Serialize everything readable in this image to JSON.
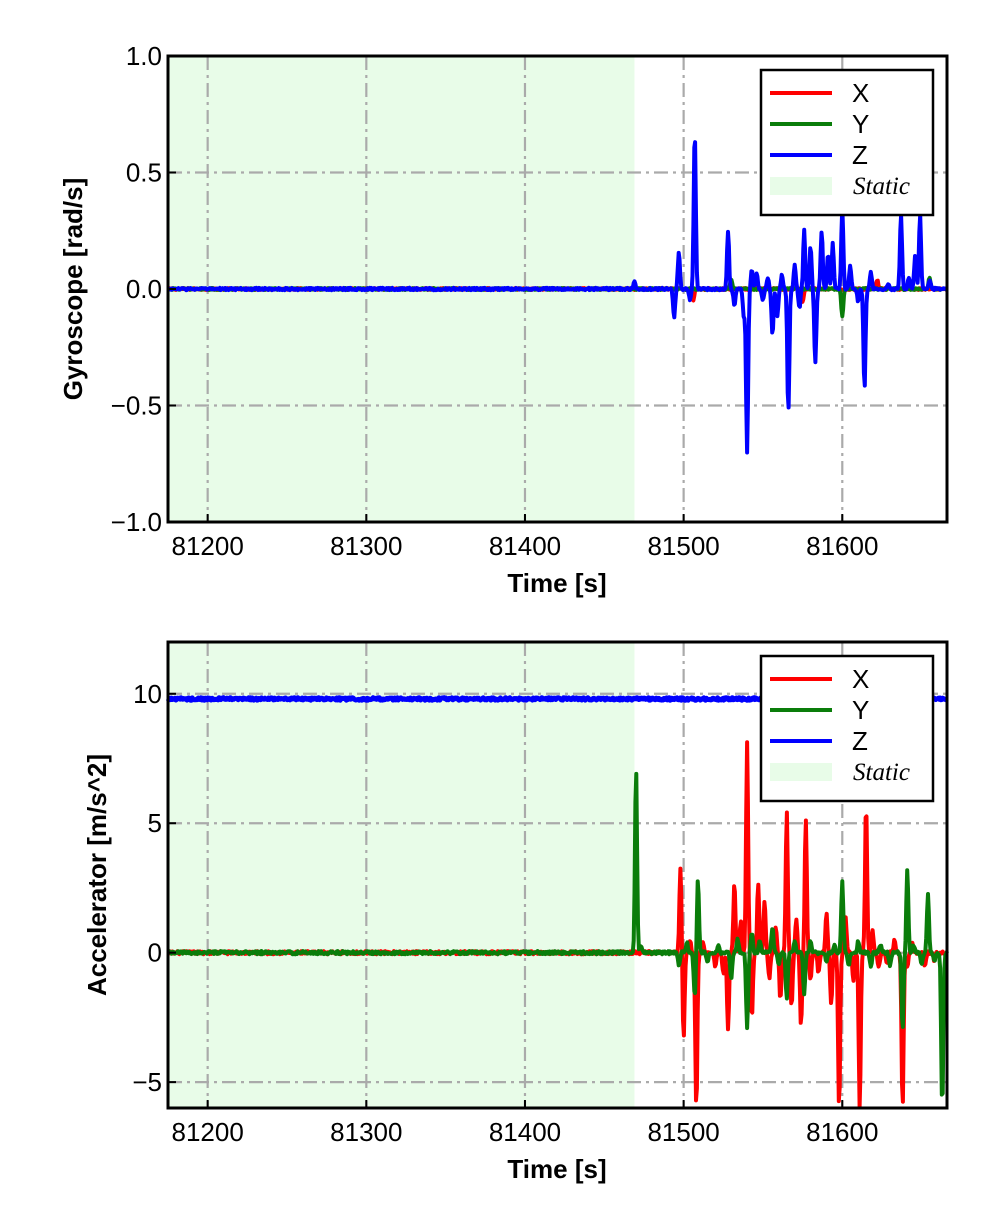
{
  "colors": {
    "X": "#ff0000",
    "Y": "#0a7d0a",
    "Z": "#0000ff",
    "static_fill": "#e8fce8",
    "grid": "#aaaaaa"
  },
  "chart_data": [
    {
      "type": "line",
      "xlabel": "Time [s]",
      "ylabel": "Gyroscope [rad/s]",
      "xlim": [
        81175,
        81666
      ],
      "ylim": [
        -1.0,
        1.0
      ],
      "xticks": [
        81200,
        81300,
        81400,
        81500,
        81600
      ],
      "xtick_labels": [
        "81200",
        "81300",
        "81400",
        "81500",
        "81600"
      ],
      "yticks": [
        -1.0,
        -0.5,
        0.0,
        0.5,
        1.0
      ],
      "ytick_labels": [
        "−1.0",
        "−0.5",
        "0.0",
        "0.5",
        "1.0"
      ],
      "grid": true,
      "legend_position": "top-right",
      "static_region": {
        "label": "Static",
        "x": [
          81175,
          81469
        ]
      },
      "series": [
        {
          "name": "X",
          "color": "#ff0000",
          "baseline": 0.0,
          "noise": 0.004,
          "events": [
            [
              81506,
              -0.05
            ],
            [
              81545,
              0.05
            ],
            [
              81575,
              -0.06
            ],
            [
              81622,
              0.04
            ]
          ]
        },
        {
          "name": "Y",
          "color": "#0a7d0a",
          "baseline": 0.0,
          "noise": 0.004,
          "events": [
            [
              81600,
              -0.12
            ],
            [
              81655,
              0.05
            ],
            [
              81530,
              0.04
            ]
          ]
        },
        {
          "name": "Z",
          "color": "#0000ff",
          "baseline": 0.0,
          "noise": 0.005,
          "events": [
            [
              81469,
              0.03
            ],
            [
              81494,
              -0.12
            ],
            [
              81497,
              0.16
            ],
            [
              81504,
              -0.05
            ],
            [
              81507,
              0.68
            ],
            [
              81528,
              0.25
            ],
            [
              81532,
              -0.07
            ],
            [
              81538,
              -0.12
            ],
            [
              81540,
              -0.7
            ],
            [
              81543,
              0.08
            ],
            [
              81546,
              0.07
            ],
            [
              81550,
              -0.05
            ],
            [
              81553,
              0.05
            ],
            [
              81556,
              -0.2
            ],
            [
              81559,
              -0.12
            ],
            [
              81562,
              0.06
            ],
            [
              81566,
              -0.53
            ],
            [
              81570,
              0.1
            ],
            [
              81573,
              -0.08
            ],
            [
              81576,
              0.25
            ],
            [
              81580,
              0.18
            ],
            [
              81583,
              -0.32
            ],
            [
              81587,
              0.25
            ],
            [
              81591,
              0.15
            ],
            [
              81594,
              0.2
            ],
            [
              81600,
              0.35
            ],
            [
              81605,
              0.1
            ],
            [
              81610,
              -0.05
            ],
            [
              81614,
              -0.43
            ],
            [
              81618,
              0.07
            ],
            [
              81629,
              0.02
            ],
            [
              81637,
              0.32
            ],
            [
              81642,
              0.05
            ],
            [
              81646,
              0.15
            ],
            [
              81649,
              0.32
            ],
            [
              81655,
              0.04
            ]
          ]
        }
      ]
    },
    {
      "type": "line",
      "xlabel": "Time [s]",
      "ylabel": "Accelerator [m/s^2]",
      "xlim": [
        81175,
        81666
      ],
      "ylim": [
        -6.0,
        12.0
      ],
      "xticks": [
        81200,
        81300,
        81400,
        81500,
        81600
      ],
      "xtick_labels": [
        "81200",
        "81300",
        "81400",
        "81500",
        "81600"
      ],
      "yticks": [
        -5,
        0,
        5,
        10
      ],
      "ytick_labels": [
        "−5",
        "0",
        "5",
        "10"
      ],
      "grid": true,
      "legend_position": "top-right",
      "static_region": {
        "label": "Static",
        "x": [
          81175,
          81469
        ]
      },
      "series": [
        {
          "name": "X",
          "color": "#ff0000",
          "baseline": 0.0,
          "noise": 0.06,
          "events": [
            [
              81498,
              3.3
            ],
            [
              81500,
              -3.3
            ],
            [
              81504,
              0.5
            ],
            [
              81508,
              -6.0
            ],
            [
              81512,
              0.4
            ],
            [
              81520,
              -0.5
            ],
            [
              81525,
              -0.8
            ],
            [
              81528,
              -3.0
            ],
            [
              81532,
              2.7
            ],
            [
              81536,
              1.2
            ],
            [
              81540,
              8.1
            ],
            [
              81543,
              -2.5
            ],
            [
              81547,
              2.7
            ],
            [
              81551,
              2.0
            ],
            [
              81554,
              -1.0
            ],
            [
              81558,
              1.0
            ],
            [
              81561,
              -1.8
            ],
            [
              81565,
              5.4
            ],
            [
              81568,
              -2.1
            ],
            [
              81571,
              1.3
            ],
            [
              81574,
              -2.8
            ],
            [
              81577,
              5.2
            ],
            [
              81580,
              -1.0
            ],
            [
              81585,
              -0.8
            ],
            [
              81590,
              1.5
            ],
            [
              81593,
              -2.0
            ],
            [
              81598,
              -6.0
            ],
            [
              81602,
              1.4
            ],
            [
              81607,
              -1.1
            ],
            [
              81611,
              -6.0
            ],
            [
              81615,
              5.8
            ],
            [
              81619,
              0.9
            ],
            [
              81623,
              -0.6
            ],
            [
              81628,
              -0.4
            ],
            [
              81633,
              0.5
            ],
            [
              81638,
              -6.0
            ],
            [
              81641,
              -0.5
            ],
            [
              81644,
              0.4
            ],
            [
              81652,
              -0.5
            ],
            [
              81658,
              -0.3
            ]
          ]
        },
        {
          "name": "Y",
          "color": "#0a7d0a",
          "baseline": 0.0,
          "noise": 0.06,
          "events": [
            [
              81470,
              7.1
            ],
            [
              81473,
              0.3
            ],
            [
              81497,
              -0.5
            ],
            [
              81502,
              0.4
            ],
            [
              81507,
              -1.7
            ],
            [
              81509,
              2.8
            ],
            [
              81515,
              -0.4
            ],
            [
              81522,
              0.3
            ],
            [
              81530,
              -1.0
            ],
            [
              81534,
              0.6
            ],
            [
              81540,
              -2.9
            ],
            [
              81543,
              0.8
            ],
            [
              81548,
              0.5
            ],
            [
              81556,
              1.0
            ],
            [
              81560,
              -0.5
            ],
            [
              81565,
              -1.8
            ],
            [
              81570,
              0.5
            ],
            [
              81576,
              -1.6
            ],
            [
              81580,
              0.4
            ],
            [
              81590,
              -0.4
            ],
            [
              81595,
              0.3
            ],
            [
              81600,
              2.8
            ],
            [
              81604,
              -0.5
            ],
            [
              81610,
              0.4
            ],
            [
              81618,
              -0.6
            ],
            [
              81624,
              0.3
            ],
            [
              81630,
              -0.5
            ],
            [
              81638,
              -3.0
            ],
            [
              81641,
              3.2
            ],
            [
              81645,
              0.3
            ],
            [
              81650,
              -0.5
            ],
            [
              81654,
              2.3
            ],
            [
              81658,
              -0.3
            ],
            [
              81663,
              -6.0
            ]
          ]
        },
        {
          "name": "Z",
          "color": "#0000ff",
          "baseline": 9.8,
          "noise": 0.05,
          "events": []
        }
      ]
    }
  ]
}
